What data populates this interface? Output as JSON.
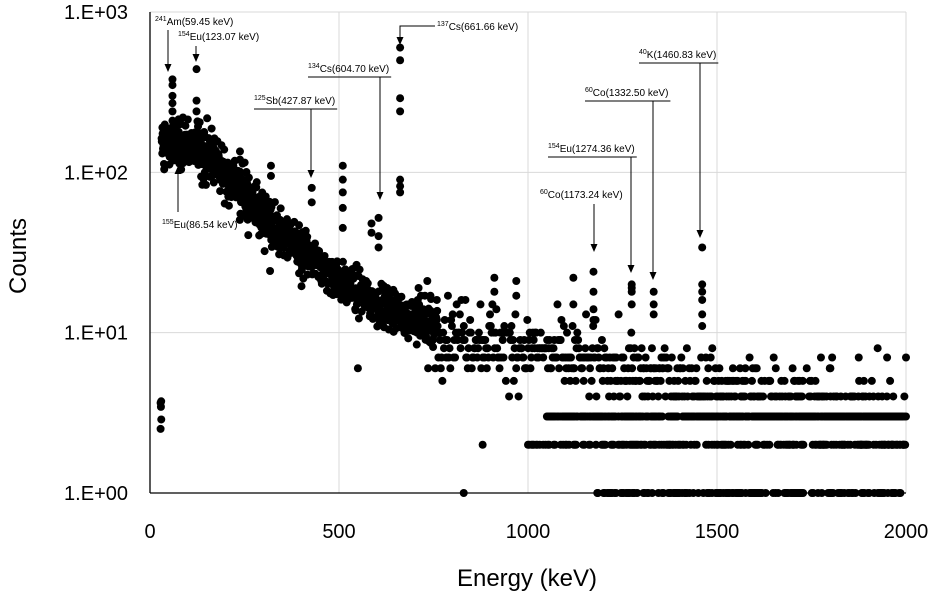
{
  "chart_data": {
    "type": "scatter",
    "title": "",
    "xlabel": "Energy (keV)",
    "ylabel": "Counts",
    "xlim": [
      0,
      2000
    ],
    "ylim": [
      1,
      1000
    ],
    "y_scale": "log",
    "grid": true,
    "x_ticks": [
      "0",
      "500",
      "1000",
      "1500",
      "2000"
    ],
    "y_ticks": [
      "1.E+00",
      "1.E+01",
      "1.E+02",
      "1.E+03"
    ],
    "series_color": "#000000",
    "annotations": [
      {
        "sup": "241",
        "text": "Am(59.45 keV)",
        "energy": 59.45,
        "counts": 350
      },
      {
        "sup": "154",
        "text": "Eu(123.07 keV)",
        "energy": 123.07,
        "counts": 430
      },
      {
        "sup": "137",
        "text": "Cs(661.66 keV)",
        "energy": 661.66,
        "counts": 600
      },
      {
        "sup": "134",
        "text": "Cs(604.70 keV)",
        "energy": 604.7,
        "counts": 60
      },
      {
        "sup": "125",
        "text": "Sb(427.87 keV)",
        "energy": 427.87,
        "counts": 90
      },
      {
        "sup": "155",
        "text": "Eu(86.54 keV)",
        "energy": 86.54,
        "counts": 130
      },
      {
        "sup": "40",
        "text": "K(1460.83 keV)",
        "energy": 1460.83,
        "counts": 37
      },
      {
        "sup": "60",
        "text": "Co(1332.50 keV)",
        "energy": 1332.5,
        "counts": 19
      },
      {
        "sup": "154",
        "text": "Eu(1274.36 keV)",
        "energy": 1274.36,
        "counts": 20
      },
      {
        "sup": "60",
        "text": "Co(1173.24 keV)",
        "energy": 1173.24,
        "counts": 25
      }
    ],
    "peaks": [
      {
        "x": 661.66,
        "y": [
          600,
          500,
          290,
          240,
          90,
          82,
          75
        ]
      },
      {
        "x": 59.45,
        "y": [
          380,
          350,
          300,
          270,
          240,
          210
        ]
      },
      {
        "x": 123.07,
        "y": [
          440,
          280,
          240
        ]
      },
      {
        "x": 604.7,
        "y": [
          52,
          40,
          34
        ]
      },
      {
        "x": 427.87,
        "y": [
          80,
          65
        ]
      },
      {
        "x": 1460.83,
        "y": [
          34,
          20,
          18,
          16,
          13,
          11
        ]
      },
      {
        "x": 1173.24,
        "y": [
          24,
          18,
          14,
          12
        ]
      },
      {
        "x": 1274.36,
        "y": [
          20,
          19,
          18,
          15
        ]
      },
      {
        "x": 1332.5,
        "y": [
          18,
          15,
          13
        ]
      },
      {
        "x": 510,
        "y": [
          110,
          90,
          75,
          60,
          45
        ]
      },
      {
        "x": 586,
        "y": [
          48,
          42
        ]
      },
      {
        "x": 238,
        "y": [
          135,
          120
        ]
      },
      {
        "x": 320,
        "y": [
          110,
          95
        ]
      },
      {
        "x": 911,
        "y": [
          22,
          18
        ]
      },
      {
        "x": 969,
        "y": [
          21,
          17
        ]
      },
      {
        "x": 1120,
        "y": [
          22,
          15
        ]
      }
    ],
    "outliers": [
      {
        "x": 550,
        "y": 6
      },
      {
        "x": 830,
        "y": 1
      },
      {
        "x": 880,
        "y": 2
      },
      {
        "x": 950,
        "y": 4
      },
      {
        "x": 1185,
        "y": 1
      }
    ],
    "continuum": [
      {
        "x": 30,
        "y": 150
      },
      {
        "x": 60,
        "y": 150
      },
      {
        "x": 100,
        "y": 150
      },
      {
        "x": 140,
        "y": 140
      },
      {
        "x": 180,
        "y": 115
      },
      {
        "x": 220,
        "y": 90
      },
      {
        "x": 260,
        "y": 68
      },
      {
        "x": 300,
        "y": 52
      },
      {
        "x": 350,
        "y": 40
      },
      {
        "x": 400,
        "y": 32
      },
      {
        "x": 450,
        "y": 26
      },
      {
        "x": 500,
        "y": 21
      },
      {
        "x": 550,
        "y": 18
      },
      {
        "x": 600,
        "y": 15
      },
      {
        "x": 650,
        "y": 14
      },
      {
        "x": 700,
        "y": 12
      },
      {
        "x": 750,
        "y": 11
      },
      {
        "x": 800,
        "y": 10
      },
      {
        "x": 900,
        "y": 9
      },
      {
        "x": 1000,
        "y": 8
      },
      {
        "x": 1100,
        "y": 7
      },
      {
        "x": 1200,
        "y": 6
      },
      {
        "x": 1300,
        "y": 5.5
      },
      {
        "x": 1500,
        "y": 4.5
      },
      {
        "x": 1700,
        "y": 3.5
      },
      {
        "x": 2000,
        "y": 3
      }
    ]
  }
}
